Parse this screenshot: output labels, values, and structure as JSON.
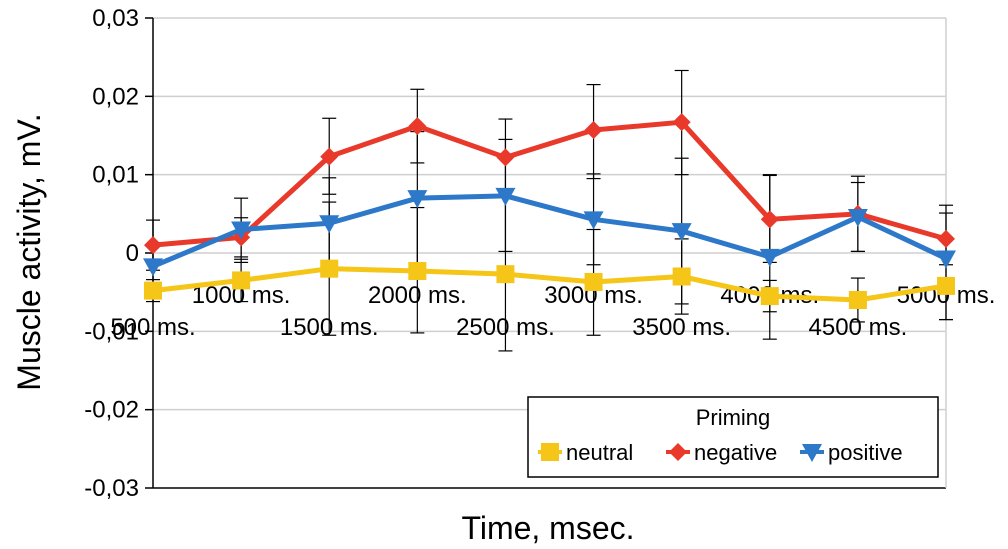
{
  "chart_data": {
    "type": "line",
    "title": "",
    "xlabel": "Time, msec.",
    "ylabel": "Muscle activity, mV.",
    "ylim": [
      -0.03,
      0.03
    ],
    "yticks": [
      {
        "value": 0.03,
        "label": "0,03"
      },
      {
        "value": 0.02,
        "label": "0,02"
      },
      {
        "value": 0.01,
        "label": "0,01"
      },
      {
        "value": 0,
        "label": "0"
      },
      {
        "value": -0.01,
        "label": "-0,01"
      },
      {
        "value": -0.02,
        "label": "-0,02"
      },
      {
        "value": -0.03,
        "label": "-0,03"
      }
    ],
    "grid": true,
    "categories": [
      "500 ms.",
      "1000 ms.",
      "1500 ms.",
      "2000 ms.",
      "2500 ms.",
      "3000 ms.",
      "3500 ms.",
      "4000 ms.",
      "4500 ms.",
      "5000 ms."
    ],
    "legend": {
      "title": "Priming",
      "placement": "bottom-right"
    },
    "series": [
      {
        "name": "neutral",
        "color": "#f5c518",
        "marker": "square",
        "values": [
          -0.0048,
          -0.0035,
          -0.002,
          -0.0023,
          -0.0027,
          -0.0037,
          -0.003,
          -0.0055,
          -0.006,
          -0.0042
        ],
        "err_low": [
          -0.0062,
          -0.0062,
          -0.0105,
          -0.0102,
          -0.0125,
          -0.0105,
          -0.0078,
          -0.0075,
          -0.0088,
          -0.0085
        ],
        "err_high": [
          -0.0034,
          -0.0008,
          0.0065,
          0.0058,
          0.0071,
          0.003,
          0.0018,
          -0.0035,
          -0.0032,
          0.0001
        ]
      },
      {
        "name": "negative",
        "color": "#e8392a",
        "marker": "diamond",
        "values": [
          0.001,
          0.002,
          0.0123,
          0.0162,
          0.0122,
          0.0157,
          0.0167,
          0.0043,
          0.005,
          0.0018
        ],
        "err_low": [
          -0.0022,
          -0.0005,
          0.0075,
          0.0115,
          0.0073,
          0.0095,
          0.01,
          -0.0012,
          0.0002,
          -0.0015
        ],
        "err_high": [
          0.0042,
          0.0045,
          0.0172,
          0.0209,
          0.0171,
          0.0215,
          0.0233,
          0.0099,
          0.0098,
          0.0051
        ]
      },
      {
        "name": "positive",
        "color": "#2d78c8",
        "marker": "triangle-down",
        "values": [
          -0.0017,
          0.003,
          0.0038,
          0.007,
          0.0073,
          0.0043,
          0.0028,
          -0.0005,
          0.0046,
          -0.0007
        ],
        "err_low": [
          -0.0045,
          -0.0012,
          -0.002,
          -0.0015,
          0.0002,
          -0.0015,
          -0.0065,
          -0.011,
          0.0002,
          -0.0085
        ],
        "err_high": [
          0.0011,
          0.007,
          0.0096,
          0.0155,
          0.0145,
          0.0101,
          0.0121,
          0.01,
          0.009,
          0.0061
        ]
      }
    ]
  }
}
